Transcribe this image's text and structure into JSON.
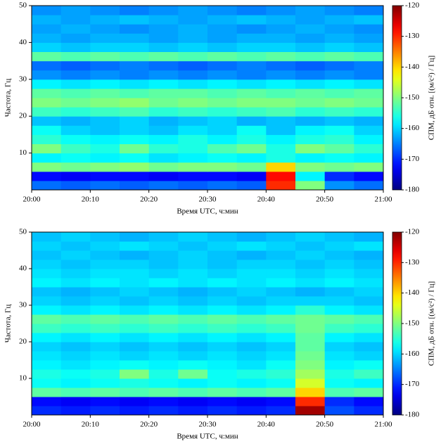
{
  "chart_data": [
    {
      "type": "heatmap",
      "xlabel": "Время UTC, ч:мин",
      "ylabel": "Частота, Гц",
      "colorbar_label": "СПМ, дБ отн. [(м/с²) / Гц]",
      "colormap": "jet",
      "xlim": [
        0,
        60
      ],
      "xticks": [
        {
          "value": 0,
          "label": "20:00"
        },
        {
          "value": 10,
          "label": "20:10"
        },
        {
          "value": 20,
          "label": "20:20"
        },
        {
          "value": 30,
          "label": "20:30"
        },
        {
          "value": 40,
          "label": "20:40"
        },
        {
          "value": 50,
          "label": "20:50"
        },
        {
          "value": 60,
          "label": "21:00"
        }
      ],
      "ylim": [
        0,
        50
      ],
      "yticks": [
        10,
        20,
        30,
        40,
        50
      ],
      "clim": [
        -180,
        -120
      ],
      "cticks": [
        -180,
        -170,
        -160,
        -150,
        -140,
        -130,
        -120
      ],
      "z": [
        [
          -166,
          -167,
          -166,
          -167,
          -166,
          -167,
          -166,
          -167,
          -130,
          -150,
          -164,
          -166
        ],
        [
          -172,
          -173,
          -172,
          -172,
          -173,
          -172,
          -172,
          -173,
          -128,
          -158,
          -170,
          -172
        ],
        [
          -150,
          -151,
          -150,
          -149,
          -151,
          -150,
          -150,
          -151,
          -140,
          -150,
          -151,
          -150
        ],
        [
          -158,
          -157,
          -158,
          -157,
          -159,
          -158,
          -157,
          -158,
          -156,
          -158,
          -157,
          -158
        ],
        [
          -150,
          -154,
          -156,
          -151,
          -155,
          -156,
          -153,
          -151,
          -156,
          -150,
          -152,
          -155
        ],
        [
          -155,
          -157,
          -158,
          -157,
          -158,
          -156,
          -158,
          -156,
          -158,
          -156,
          -155,
          -158
        ],
        [
          -157,
          -160,
          -161,
          -160,
          -161,
          -159,
          -160,
          -157,
          -161,
          -158,
          -157,
          -160
        ],
        [
          -161,
          -162,
          -161,
          -160,
          -162,
          -161,
          -160,
          -162,
          -161,
          -162,
          -161,
          -162
        ],
        [
          -154,
          -155,
          -154,
          -153,
          -155,
          -154,
          -155,
          -154,
          -153,
          -155,
          -154,
          -155
        ],
        [
          -150,
          -151,
          -150,
          -149,
          -151,
          -150,
          -151,
          -150,
          -150,
          -151,
          -150,
          -151
        ],
        [
          -152,
          -153,
          -152,
          -153,
          -152,
          -152,
          -153,
          -152,
          -153,
          -152,
          -153,
          -152
        ],
        [
          -158,
          -159,
          -158,
          -159,
          -158,
          -159,
          -158,
          -159,
          -158,
          -159,
          -158,
          -159
        ],
        [
          -164,
          -165,
          -164,
          -165,
          -164,
          -165,
          -164,
          -165,
          -164,
          -165,
          -164,
          -165
        ],
        [
          -166,
          -167,
          -166,
          -165,
          -166,
          -167,
          -166,
          -165,
          -166,
          -167,
          -166,
          -165
        ],
        [
          -152,
          -153,
          -152,
          -153,
          -152,
          -153,
          -152,
          -153,
          -152,
          -153,
          -152,
          -153
        ],
        [
          -160,
          -161,
          -160,
          -160,
          -161,
          -160,
          -161,
          -160,
          -160,
          -161,
          -160,
          -161
        ],
        [
          -162,
          -163,
          -162,
          -162,
          -163,
          -162,
          -163,
          -162,
          -162,
          -163,
          -162,
          -163
        ],
        [
          -163,
          -162,
          -163,
          -164,
          -163,
          -162,
          -163,
          -164,
          -163,
          -162,
          -163,
          -164
        ],
        [
          -162,
          -163,
          -162,
          -161,
          -162,
          -163,
          -162,
          -161,
          -162,
          -163,
          -162,
          -161
        ],
        [
          -164,
          -163,
          -164,
          -165,
          -164,
          -163,
          -164,
          -165,
          -164,
          -163,
          -164,
          -165
        ]
      ]
    },
    {
      "type": "heatmap",
      "xlabel": "Время UTC, ч:мин",
      "ylabel": "Частота, Гц",
      "colorbar_label": "СПМ, дБ отн. [(м/с²) / Гц]",
      "colormap": "jet",
      "xlim": [
        0,
        60
      ],
      "xticks": [
        {
          "value": 0,
          "label": "20:00"
        },
        {
          "value": 10,
          "label": "20:10"
        },
        {
          "value": 20,
          "label": "20:20"
        },
        {
          "value": 30,
          "label": "20:30"
        },
        {
          "value": 40,
          "label": "20:40"
        },
        {
          "value": 50,
          "label": "20:50"
        },
        {
          "value": 60,
          "label": "21:00"
        }
      ],
      "ylim": [
        0,
        50
      ],
      "yticks": [
        10,
        20,
        30,
        40,
        50
      ],
      "clim": [
        -180,
        -120
      ],
      "cticks": [
        -180,
        -170,
        -160,
        -150,
        -140,
        -130,
        -120
      ],
      "z": [
        [
          -170,
          -171,
          -170,
          -171,
          -170,
          -171,
          -170,
          -171,
          -170,
          -122,
          -168,
          -170
        ],
        [
          -172,
          -173,
          -172,
          -173,
          -172,
          -173,
          -172,
          -173,
          -172,
          -130,
          -170,
          -172
        ],
        [
          -152,
          -153,
          -152,
          -153,
          -152,
          -153,
          -152,
          -153,
          -152,
          -140,
          -153,
          -152
        ],
        [
          -157,
          -158,
          -157,
          -156,
          -157,
          -158,
          -157,
          -158,
          -157,
          -145,
          -157,
          -158
        ],
        [
          -156,
          -157,
          -156,
          -150,
          -156,
          -151,
          -157,
          -156,
          -155,
          -148,
          -156,
          -154
        ],
        [
          -158,
          -159,
          -158,
          -157,
          -158,
          -157,
          -158,
          -159,
          -157,
          -150,
          -158,
          -157
        ],
        [
          -159,
          -160,
          -159,
          -160,
          -159,
          -160,
          -159,
          -160,
          -159,
          -151,
          -159,
          -160
        ],
        [
          -160,
          -161,
          -160,
          -161,
          -160,
          -161,
          -160,
          -161,
          -160,
          -152,
          -160,
          -161
        ],
        [
          -158,
          -159,
          -158,
          -159,
          -158,
          -159,
          -158,
          -159,
          -158,
          -152,
          -158,
          -159
        ],
        [
          -154,
          -155,
          -154,
          -155,
          -154,
          -155,
          -154,
          -155,
          -154,
          -151,
          -154,
          -155
        ],
        [
          -152,
          -153,
          -152,
          -153,
          -152,
          -153,
          -152,
          -153,
          -152,
          -151,
          -152,
          -153
        ],
        [
          -158,
          -159,
          -158,
          -159,
          -158,
          -159,
          -158,
          -159,
          -158,
          -155,
          -158,
          -159
        ],
        [
          -160,
          -161,
          -160,
          -161,
          -160,
          -161,
          -160,
          -161,
          -160,
          -160,
          -160,
          -161
        ],
        [
          -161,
          -162,
          -161,
          -160,
          -161,
          -162,
          -161,
          -160,
          -161,
          -162,
          -161,
          -160
        ],
        [
          -158,
          -159,
          -158,
          -159,
          -158,
          -159,
          -158,
          -159,
          -158,
          -159,
          -158,
          -159
        ],
        [
          -159,
          -160,
          -159,
          -159,
          -160,
          -159,
          -160,
          -159,
          -159,
          -160,
          -159,
          -160
        ],
        [
          -160,
          -161,
          -160,
          -160,
          -161,
          -160,
          -161,
          -160,
          -160,
          -161,
          -160,
          -161
        ],
        [
          -161,
          -160,
          -161,
          -162,
          -161,
          -160,
          -161,
          -162,
          -161,
          -160,
          -161,
          -162
        ],
        [
          -160,
          -161,
          -160,
          -159,
          -160,
          -161,
          -160,
          -159,
          -160,
          -161,
          -160,
          -159
        ],
        [
          -161,
          -160,
          -161,
          -162,
          -161,
          -160,
          -161,
          -162,
          -161,
          -160,
          -161,
          -162
        ]
      ]
    }
  ]
}
